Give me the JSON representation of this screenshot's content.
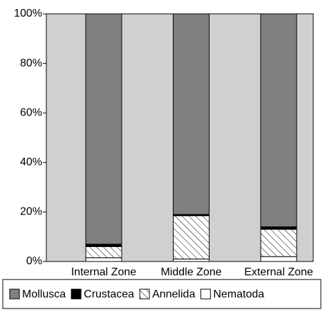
{
  "chart_data": {
    "type": "stacked_bar",
    "categories": [
      "Internal Zone",
      "Middle Zone",
      "External Zone"
    ],
    "series": [
      {
        "name": "Nematoda",
        "color": "#ffffff",
        "values": [
          1.5,
          1,
          2
        ]
      },
      {
        "name": "Annelida",
        "color": "#ffffff",
        "pattern": "diagonal-hatch",
        "values": [
          4.5,
          17.5,
          11
        ]
      },
      {
        "name": "Crustacea",
        "color": "#000000",
        "values": [
          1,
          0.5,
          1
        ]
      },
      {
        "name": "Mollusca",
        "color": "#808080",
        "values": [
          93,
          81,
          86
        ]
      }
    ],
    "legend_order": [
      3,
      2,
      1,
      0
    ],
    "legend": "bottom",
    "plot_background": "#d0d0d0",
    "ylim": [
      0,
      100
    ],
    "yticks": [
      {
        "value": 0,
        "label": "0%"
      },
      {
        "value": 20,
        "label": "20%"
      },
      {
        "value": 40,
        "label": "40%"
      },
      {
        "value": 60,
        "label": "60%"
      },
      {
        "value": 80,
        "label": "80%"
      },
      {
        "value": 100,
        "label": "100%"
      }
    ],
    "grid": false
  }
}
